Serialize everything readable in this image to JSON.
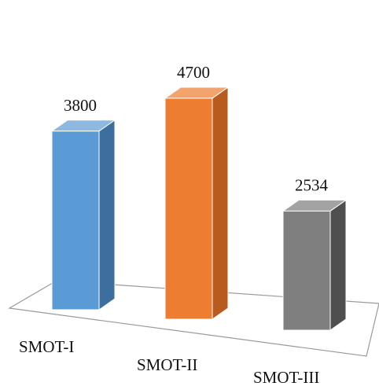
{
  "chart_data": {
    "type": "bar",
    "categories": [
      "SMOT-I",
      "SMOT-II",
      "SMOT-III"
    ],
    "values": [
      3800,
      4700,
      2534
    ],
    "data_labels": [
      "3800",
      "4700",
      "2534"
    ],
    "title": "",
    "xlabel": "",
    "ylabel": "",
    "ylim": [
      0,
      4700
    ],
    "grid": false,
    "legend": "none",
    "style": "3d-column",
    "colors": {
      "bars": [
        "#5b9bd5",
        "#ed7d31",
        "#7f7f7f"
      ],
      "bar_sides": [
        "#3c6f9e",
        "#b85b1e",
        "#4f4f4f"
      ],
      "bar_tops": [
        "#8cb8e2",
        "#f3a46c",
        "#a3a3a3"
      ],
      "floor_line": "#9a9a9a"
    }
  }
}
